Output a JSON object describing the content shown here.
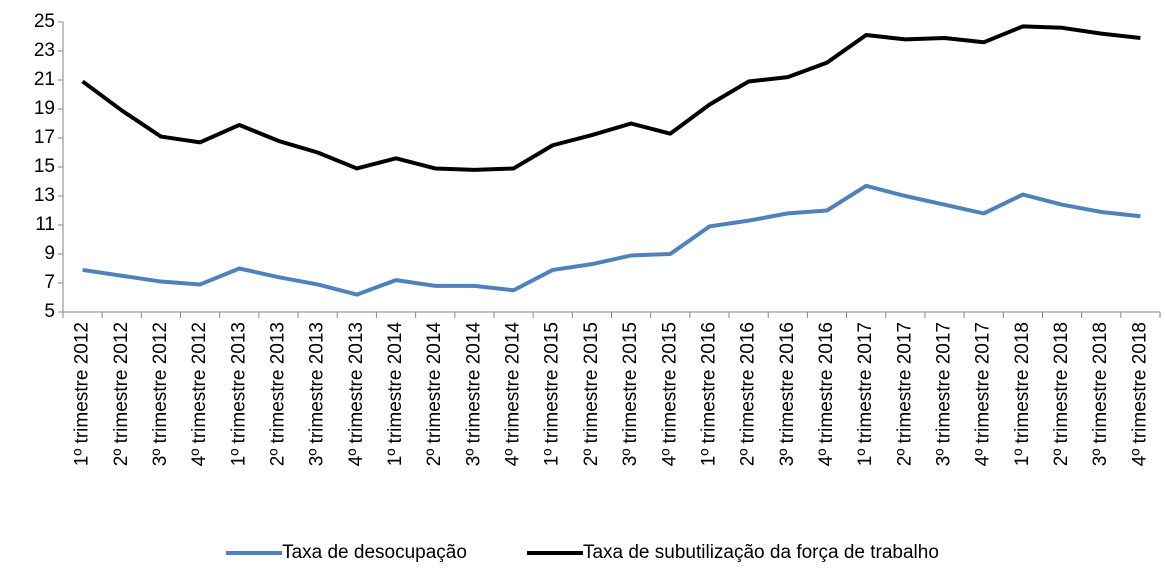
{
  "chart_data": {
    "type": "line",
    "categories": [
      "1º trimestre 2012",
      "2º trimestre 2012",
      "3º trimestre 2012",
      "4º trimestre 2012",
      "1º trimestre 2013",
      "2º trimestre 2013",
      "3º trimestre 2013",
      "4º trimestre 2013",
      "1º trimestre 2014",
      "2º trimestre 2014",
      "3º trimestre 2014",
      "4º trimestre 2014",
      "1º trimestre 2015",
      "2º trimestre 2015",
      "3º trimestre 2015",
      "4º trimestre 2015",
      "1º trimestre 2016",
      "2º trimestre 2016",
      "3º trimestre 2016",
      "4º trimestre 2016",
      "1º trimestre 2017",
      "2º trimestre 2017",
      "3º trimestre 2017",
      "4º trimestre 2017",
      "1º trimestre 2018",
      "2º trimestre 2018",
      "3º trimestre 2018",
      "4º trimestre 2018"
    ],
    "series": [
      {
        "name": "Taxa de desocupação",
        "color": "#4f81bd",
        "values": [
          7.9,
          7.5,
          7.1,
          6.9,
          8.0,
          7.4,
          6.9,
          6.2,
          7.2,
          6.8,
          6.8,
          6.5,
          7.9,
          8.3,
          8.9,
          9.0,
          10.9,
          11.3,
          11.8,
          12.0,
          13.7,
          13.0,
          12.4,
          11.8,
          13.1,
          12.4,
          11.9,
          11.6
        ]
      },
      {
        "name": "Taxa de subutilização da força de trabalho",
        "color": "#000000",
        "values": [
          20.9,
          18.9,
          17.1,
          16.7,
          17.9,
          16.8,
          16.0,
          14.9,
          15.6,
          14.9,
          14.8,
          14.9,
          16.5,
          17.2,
          18.0,
          17.3,
          19.3,
          20.9,
          21.2,
          22.2,
          24.1,
          23.8,
          23.9,
          23.6,
          24.7,
          24.6,
          24.2,
          23.9
        ]
      }
    ],
    "ylim": [
      5,
      25
    ],
    "yticks": [
      5,
      7,
      9,
      11,
      13,
      15,
      17,
      19,
      21,
      23,
      25
    ],
    "grid": false,
    "legend": "bottom"
  }
}
